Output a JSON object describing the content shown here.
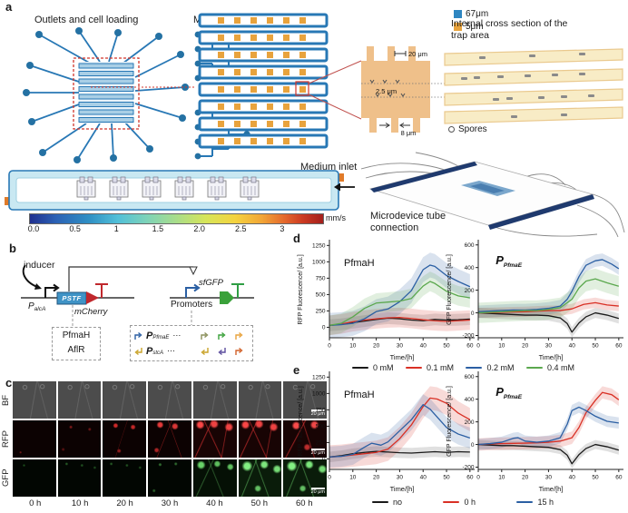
{
  "figure": {
    "panel_labels": {
      "a": "a",
      "b": "b",
      "c": "c",
      "d": "d",
      "e": "e"
    }
  },
  "panel_a": {
    "outlets_label": "Outlets and cell loading",
    "medium_inlets_label": "Medium inlets",
    "legend": [
      {
        "label": "67μm",
        "color": "#2e86c1"
      },
      {
        "label": "5μm",
        "color": "#e8a33d"
      }
    ],
    "cross_section_title": "Internal cross section of the trap area",
    "dims": {
      "trap_spacing": "20 μm",
      "slit": "2.5 μm",
      "channel": "8 μm"
    },
    "spores_label": "Spores",
    "medium_inlet_label": "Medium inlet",
    "colorbar": {
      "ticks": [
        "0.0",
        "0.5",
        "1",
        "1.5",
        "2.0",
        "2.5",
        "3"
      ],
      "values": [
        0,
        0.5,
        1,
        1.5,
        2,
        2.5,
        3
      ],
      "unit": "mm/s"
    },
    "microdevice_label_1": "Microdevice tube",
    "microdevice_label_2": "connection"
  },
  "panel_b": {
    "inducer": "inducer",
    "palca": {
      "main": "P",
      "sub": "alcA"
    },
    "pstf": "PSTF",
    "mcherry": "mCherry",
    "sfgfp": "sfGFP",
    "promoters_label": "Promoters",
    "tf_box": [
      "PfmaH",
      "AflR"
    ],
    "promoter_box": {
      "rows": [
        {
          "p": "P",
          "sub": "PfmaE",
          "dots": "⋯",
          "icons": [
            {
              "color": "#2b5fa3",
              "dir": "up"
            },
            {
              "color": "#8a8f5a",
              "dir": "up"
            },
            {
              "color": "#3aa13a",
              "dir": "up"
            },
            {
              "color": "#e8a33d",
              "dir": "up"
            }
          ]
        },
        {
          "p": "P",
          "sub": "stcA",
          "dots": "⋯",
          "icons": [
            {
              "color": "#c9a227",
              "dir": "down"
            },
            {
              "color": "#c9a227",
              "dir": "down"
            },
            {
              "color": "#5c4d9e",
              "dir": "down"
            },
            {
              "color": "#d2622a",
              "dir": "up"
            }
          ]
        }
      ]
    }
  },
  "panel_c": {
    "row_labels": [
      "BF",
      "RFP",
      "GFP"
    ],
    "time_labels": [
      "0 h",
      "10 h",
      "20 h",
      "30 h",
      "40 h",
      "50 h",
      "60 h"
    ],
    "scalebar": "20 μm"
  },
  "panel_d": {
    "legend": [
      {
        "label": "0 mM",
        "color": "#1a1a1a"
      },
      {
        "label": "0.1 mM",
        "color": "#d93025"
      },
      {
        "label": "0.2 mM",
        "color": "#2b5fa3"
      },
      {
        "label": "0.4 mM",
        "color": "#5ba84e"
      }
    ]
  },
  "panel_e": {
    "legend": [
      {
        "label": "no",
        "color": "#1a1a1a"
      },
      {
        "label": "0 h",
        "color": "#d93025"
      },
      {
        "label": "15 h",
        "color": "#2b5fa3"
      }
    ]
  },
  "chart_data": [
    {
      "id": "d-rfp",
      "type": "line",
      "annot": {
        "text": "PfmaH",
        "sub": "",
        "style": "plain",
        "fx": 0.1,
        "fy": 0.18
      },
      "ylabel": "RFP Fluorescence/ [a.u.]",
      "xlabel": "Time/[h]",
      "xlim": [
        0,
        62
      ],
      "ylim": [
        -160,
        1310
      ],
      "xticks": [
        0,
        10,
        20,
        30,
        40,
        50,
        60
      ],
      "yticks": [
        0,
        250,
        500,
        750,
        1000,
        1250
      ],
      "series": [
        {
          "name": "0 mM",
          "color": "#1a1a1a",
          "band": 90,
          "x": [
            0,
            5,
            10,
            15,
            20,
            25,
            30,
            35,
            40,
            45,
            50,
            55,
            60
          ],
          "y": [
            30,
            45,
            70,
            95,
            120,
            140,
            130,
            110,
            100,
            120,
            110,
            115,
            125
          ]
        },
        {
          "name": "0.1 mM",
          "color": "#d93025",
          "band": 150,
          "x": [
            0,
            5,
            10,
            15,
            20,
            25,
            30,
            35,
            40,
            45,
            50,
            55,
            60
          ],
          "y": [
            30,
            50,
            85,
            110,
            130,
            145,
            150,
            135,
            115,
            100,
            90,
            100,
            110
          ]
        },
        {
          "name": "0.2 mM",
          "color": "#2b5fa3",
          "band": 190,
          "x": [
            0,
            5,
            10,
            15,
            20,
            25,
            30,
            35,
            40,
            43,
            45,
            50,
            55,
            60
          ],
          "y": [
            30,
            40,
            60,
            130,
            240,
            280,
            390,
            560,
            880,
            950,
            930,
            790,
            700,
            620
          ]
        },
        {
          "name": "0.4 mM",
          "color": "#5ba84e",
          "band": 150,
          "x": [
            0,
            5,
            10,
            15,
            20,
            25,
            30,
            35,
            40,
            43,
            45,
            50,
            55,
            60
          ],
          "y": [
            30,
            60,
            160,
            290,
            370,
            385,
            400,
            440,
            630,
            700,
            670,
            550,
            480,
            450
          ]
        }
      ]
    },
    {
      "id": "d-gfp",
      "type": "line",
      "annot": {
        "text": "P",
        "sub": "PfmaE",
        "style": "italic",
        "fx": 0.12,
        "fy": 0.16
      },
      "ylabel": "GFP Fluorescence/ [a.u.]",
      "xlabel": "Time/[h]",
      "xlim": [
        0,
        62
      ],
      "ylim": [
        -220,
        630
      ],
      "xticks": [
        0,
        10,
        20,
        30,
        40,
        50,
        60
      ],
      "yticks": [
        -200,
        0,
        200,
        400,
        600
      ],
      "series": [
        {
          "name": "0 mM",
          "color": "#1a1a1a",
          "band": 45,
          "x": [
            0,
            5,
            10,
            15,
            20,
            25,
            30,
            35,
            38,
            40,
            43,
            46,
            50,
            55,
            60
          ],
          "y": [
            0,
            -5,
            -10,
            -15,
            -20,
            -20,
            -25,
            -45,
            -95,
            -170,
            -90,
            -35,
            0,
            -20,
            -50
          ]
        },
        {
          "name": "0.1 mM",
          "color": "#d93025",
          "band": 45,
          "x": [
            0,
            5,
            10,
            15,
            20,
            25,
            30,
            35,
            40,
            45,
            50,
            55,
            60
          ],
          "y": [
            0,
            2,
            5,
            8,
            10,
            15,
            20,
            20,
            35,
            75,
            90,
            70,
            60
          ]
        },
        {
          "name": "0.2 mM",
          "color": "#2b5fa3",
          "band": 55,
          "x": [
            0,
            5,
            10,
            15,
            20,
            25,
            30,
            35,
            38,
            40,
            43,
            46,
            50,
            53,
            57,
            60
          ],
          "y": [
            10,
            15,
            20,
            25,
            25,
            30,
            40,
            60,
            120,
            190,
            320,
            420,
            460,
            470,
            430,
            390
          ]
        },
        {
          "name": "0.4 mM",
          "color": "#5ba84e",
          "band": 90,
          "x": [
            0,
            5,
            10,
            15,
            20,
            25,
            30,
            35,
            40,
            43,
            46,
            50,
            55,
            60
          ],
          "y": [
            0,
            5,
            10,
            15,
            20,
            20,
            30,
            45,
            120,
            220,
            280,
            300,
            265,
            235
          ]
        }
      ]
    },
    {
      "id": "e-rfp",
      "type": "line",
      "annot": {
        "text": "PfmaH",
        "sub": "",
        "style": "plain",
        "fx": 0.1,
        "fy": 0.18
      },
      "ylabel": "RFP Fluorescence/ [a.u.]",
      "xlabel": "Time/[h]",
      "xlim": [
        0,
        62
      ],
      "ylim": [
        -160,
        1310
      ],
      "xticks": [
        0,
        10,
        20,
        30,
        40,
        50,
        60
      ],
      "yticks": [
        0,
        250,
        500,
        750,
        1000,
        1250
      ],
      "series": [
        {
          "name": "no",
          "color": "#1a1a1a",
          "band": 80,
          "x": [
            0,
            5,
            10,
            15,
            20,
            25,
            30,
            35,
            40,
            45,
            50,
            55,
            60
          ],
          "y": [
            30,
            50,
            80,
            100,
            115,
            105,
            95,
            90,
            100,
            110,
            100,
            110,
            105
          ]
        },
        {
          "name": "0 h",
          "color": "#d93025",
          "band": 180,
          "x": [
            0,
            5,
            10,
            15,
            20,
            25,
            30,
            35,
            40,
            43,
            46,
            50,
            55,
            60
          ],
          "y": [
            30,
            40,
            60,
            80,
            100,
            150,
            310,
            520,
            800,
            930,
            915,
            850,
            700,
            600
          ]
        },
        {
          "name": "15 h",
          "color": "#2b5fa3",
          "band": 160,
          "x": [
            0,
            5,
            10,
            15,
            18,
            22,
            25,
            30,
            35,
            40,
            43,
            46,
            50,
            55,
            60
          ],
          "y": [
            30,
            40,
            70,
            180,
            240,
            210,
            260,
            430,
            600,
            830,
            760,
            640,
            480,
            380,
            320
          ]
        }
      ]
    },
    {
      "id": "e-gfp",
      "type": "line",
      "annot": {
        "text": "P",
        "sub": "PfmaE",
        "style": "italic",
        "fx": 0.12,
        "fy": 0.16
      },
      "ylabel": "GFP Fluorescence/ [a.u.]",
      "xlabel": "Time/[h]",
      "xlim": [
        0,
        62
      ],
      "ylim": [
        -220,
        630
      ],
      "xticks": [
        0,
        10,
        20,
        30,
        40,
        50,
        60
      ],
      "yticks": [
        -200,
        0,
        200,
        400,
        600
      ],
      "series": [
        {
          "name": "no",
          "color": "#1a1a1a",
          "band": 40,
          "x": [
            0,
            5,
            10,
            15,
            20,
            25,
            30,
            35,
            38,
            40,
            43,
            46,
            50,
            55,
            60
          ],
          "y": [
            0,
            -5,
            -10,
            -10,
            -15,
            -20,
            -25,
            -45,
            -95,
            -170,
            -90,
            -35,
            0,
            -20,
            -50
          ]
        },
        {
          "name": "0 h",
          "color": "#d93025",
          "band": 55,
          "x": [
            0,
            5,
            10,
            15,
            20,
            25,
            30,
            35,
            40,
            43,
            46,
            50,
            53,
            57,
            60
          ],
          "y": [
            0,
            5,
            8,
            10,
            12,
            15,
            20,
            30,
            60,
            150,
            280,
            390,
            460,
            440,
            395
          ]
        },
        {
          "name": "15 h",
          "color": "#2b5fa3",
          "band": 50,
          "x": [
            0,
            5,
            10,
            15,
            17,
            20,
            25,
            30,
            35,
            38,
            40,
            43,
            46,
            50,
            55,
            60
          ],
          "y": [
            0,
            8,
            20,
            55,
            60,
            30,
            20,
            30,
            60,
            180,
            300,
            330,
            300,
            250,
            205,
            190
          ]
        }
      ]
    }
  ]
}
